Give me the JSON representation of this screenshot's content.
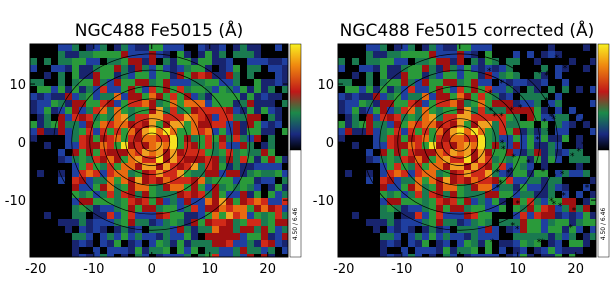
{
  "chart_data": [
    {
      "type": "image",
      "title": "NGC488 Fe5015 (Å)",
      "xlim": [
        -21,
        23.5
      ],
      "ylim": [
        -19.8,
        16.9
      ],
      "xticks": [
        -20,
        -10,
        0,
        10,
        20
      ],
      "yticks": [
        -10,
        0,
        10
      ],
      "colorbar_label": "4.50 / 6.46"
    },
    {
      "type": "image",
      "title": "NGC488 Fe5015 corrected (Å)",
      "xlim": [
        -21,
        23.5
      ],
      "ylim": [
        -19.8,
        16.9
      ],
      "xticks": [
        -20,
        -10,
        0,
        10,
        20
      ],
      "yticks": [
        -10,
        0,
        10
      ],
      "colorbar_label": "4.50 / 6.46"
    }
  ]
}
